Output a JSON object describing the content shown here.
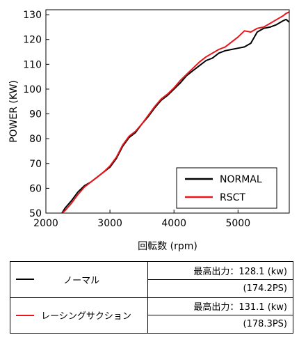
{
  "chart_data": {
    "type": "line",
    "xlabel": "回転数 (rpm)",
    "ylabel": "POWER (KW)",
    "xlim": [
      2000,
      5800
    ],
    "ylim": [
      50,
      132
    ],
    "xticks": [
      2000,
      3000,
      4000,
      5000
    ],
    "yticks": [
      50,
      60,
      70,
      80,
      90,
      100,
      110,
      120,
      130
    ],
    "legend_placement": "bottom-right",
    "grid": false,
    "series": [
      {
        "name": "NORMAL",
        "color": "#000000",
        "points": [
          [
            2250,
            50
          ],
          [
            2300,
            52
          ],
          [
            2400,
            55
          ],
          [
            2500,
            58.5
          ],
          [
            2600,
            61
          ],
          [
            2700,
            62.5
          ],
          [
            2800,
            64.5
          ],
          [
            2900,
            66.5
          ],
          [
            3000,
            68.5
          ],
          [
            3100,
            72
          ],
          [
            3200,
            77
          ],
          [
            3300,
            80.5
          ],
          [
            3400,
            82.5
          ],
          [
            3500,
            86
          ],
          [
            3600,
            89
          ],
          [
            3700,
            92.5
          ],
          [
            3800,
            95.5
          ],
          [
            3900,
            97.5
          ],
          [
            4000,
            100
          ],
          [
            4100,
            102.5
          ],
          [
            4200,
            105.5
          ],
          [
            4300,
            107.5
          ],
          [
            4400,
            109.5
          ],
          [
            4500,
            111.5
          ],
          [
            4600,
            112.5
          ],
          [
            4700,
            114.5
          ],
          [
            4800,
            115.5
          ],
          [
            4900,
            116
          ],
          [
            5000,
            116.5
          ],
          [
            5100,
            117
          ],
          [
            5200,
            118.5
          ],
          [
            5300,
            123
          ],
          [
            5400,
            124.5
          ],
          [
            5500,
            125
          ],
          [
            5600,
            126
          ],
          [
            5700,
            127.5
          ],
          [
            5750,
            128.1
          ],
          [
            5800,
            127
          ]
        ]
      },
      {
        "name": "RSCT",
        "color": "#e8151b",
        "points": [
          [
            2250,
            50
          ],
          [
            2300,
            51
          ],
          [
            2400,
            54
          ],
          [
            2500,
            57.5
          ],
          [
            2600,
            60.5
          ],
          [
            2700,
            62.5
          ],
          [
            2800,
            64.5
          ],
          [
            2900,
            66.5
          ],
          [
            3000,
            69
          ],
          [
            3100,
            72.5
          ],
          [
            3200,
            77.5
          ],
          [
            3300,
            81
          ],
          [
            3400,
            83
          ],
          [
            3500,
            86
          ],
          [
            3600,
            89.5
          ],
          [
            3700,
            93
          ],
          [
            3800,
            96
          ],
          [
            3900,
            98
          ],
          [
            4000,
            100.5
          ],
          [
            4100,
            103.5
          ],
          [
            4200,
            106
          ],
          [
            4300,
            108.5
          ],
          [
            4400,
            111
          ],
          [
            4500,
            113
          ],
          [
            4600,
            114.5
          ],
          [
            4700,
            116
          ],
          [
            4800,
            117
          ],
          [
            4900,
            119
          ],
          [
            5000,
            121
          ],
          [
            5100,
            123.5
          ],
          [
            5200,
            123
          ],
          [
            5300,
            124.5
          ],
          [
            5400,
            125
          ],
          [
            5500,
            126.5
          ],
          [
            5600,
            128
          ],
          [
            5700,
            129.5
          ],
          [
            5750,
            130.5
          ],
          [
            5800,
            131.1
          ]
        ]
      }
    ]
  },
  "table": {
    "rows": [
      {
        "label": "ノーマル",
        "color": "#000000",
        "max_power": "最高出力：128.1 (kw)",
        "ps": "(174.2PS)"
      },
      {
        "label": "レーシングサクション",
        "color": "#e8151b",
        "max_power": "最高出力：131.1 (kw)",
        "ps": "(178.3PS)"
      }
    ]
  }
}
